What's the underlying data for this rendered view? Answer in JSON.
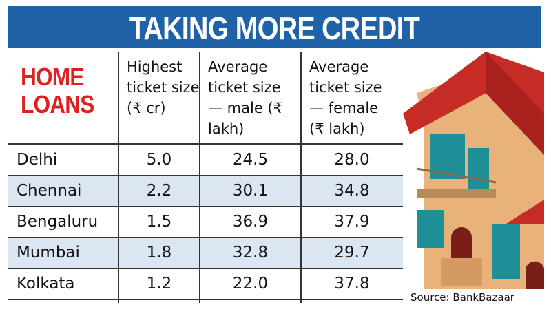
{
  "title": "TAKING MORE CREDIT",
  "label": "HOME LOANS",
  "table": {
    "columns": [
      "Highest ticket size (₹ cr)",
      "Average ticket size — male (₹ lakh)",
      "Average ticket size — female (₹ lakh)"
    ],
    "rows": [
      [
        "Delhi",
        "5.0",
        "24.5",
        "28.0"
      ],
      [
        "Chennai",
        "2.2",
        "30.1",
        "34.8"
      ],
      [
        "Bengaluru",
        "1.5",
        "36.9",
        "37.9"
      ],
      [
        "Mumbai",
        "1.8",
        "32.8",
        "29.7"
      ],
      [
        "Kolkata",
        "1.2",
        "22.0",
        "37.8"
      ]
    ]
  },
  "source": "Source: BankBazaar"
}
